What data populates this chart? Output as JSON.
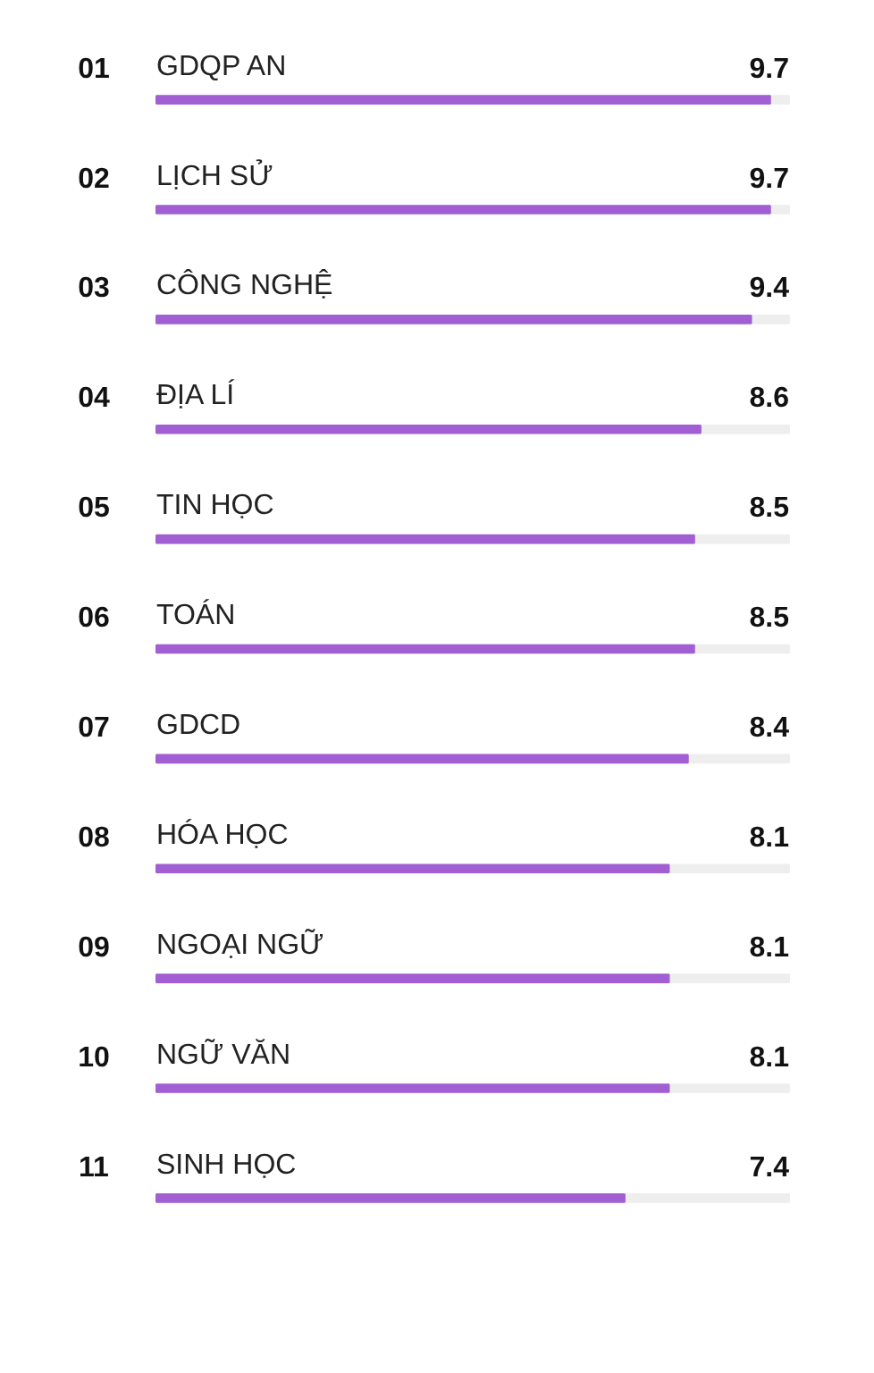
{
  "chart_data": {
    "type": "bar",
    "orientation": "horizontal",
    "categories": [
      "GDQP AN",
      "LỊCH SỬ",
      "CÔNG NGHỆ",
      "ĐỊA LÍ",
      "TIN HỌC",
      "TOÁN",
      "GDCD",
      "HÓA HỌC",
      "NGOẠI NGỮ",
      "NGỮ VĂN",
      "SINH HỌC"
    ],
    "values": [
      9.7,
      9.7,
      9.4,
      8.6,
      8.5,
      8.5,
      8.4,
      8.1,
      8.1,
      8.1,
      7.4
    ],
    "color": "#a15fd3",
    "xlim": [
      0,
      10
    ],
    "data_labels": true,
    "grid": false,
    "tick_labels": false,
    "annotations": [
      "01",
      "02",
      "03",
      "04",
      "05",
      "06",
      "07",
      "08",
      "09",
      "10",
      "11"
    ]
  }
}
